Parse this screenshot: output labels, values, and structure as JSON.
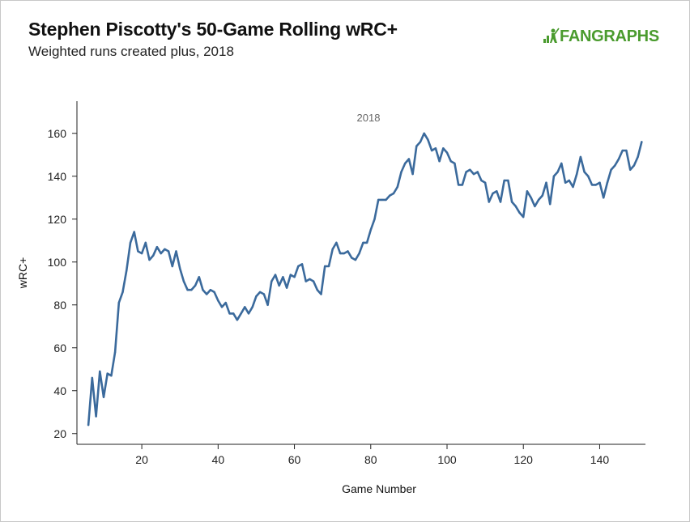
{
  "header": {
    "title": "Stephen Piscotty's 50-Game Rolling wRC+",
    "subtitle": "Weighted runs created plus, 2018",
    "logo_text": "FANGRAPHS"
  },
  "chart_data": {
    "type": "line",
    "xlabel": "Game Number",
    "ylabel": "wRC+",
    "xlim": [
      3,
      152
    ],
    "ylim": [
      15,
      175
    ],
    "xticks": [
      20,
      40,
      60,
      80,
      100,
      120,
      140
    ],
    "yticks": [
      20,
      40,
      60,
      80,
      100,
      120,
      140,
      160
    ],
    "annotation": "2018",
    "line_color": "#3b6a9c",
    "series": [
      {
        "name": "2018",
        "x": [
          6,
          7,
          8,
          9,
          10,
          11,
          12,
          13,
          14,
          15,
          16,
          17,
          18,
          19,
          20,
          21,
          22,
          23,
          24,
          25,
          26,
          27,
          28,
          29,
          30,
          31,
          32,
          33,
          34,
          35,
          36,
          37,
          38,
          39,
          40,
          41,
          42,
          43,
          44,
          45,
          46,
          47,
          48,
          49,
          50,
          51,
          52,
          53,
          54,
          55,
          56,
          57,
          58,
          59,
          60,
          61,
          62,
          63,
          64,
          65,
          66,
          67,
          68,
          69,
          70,
          71,
          72,
          73,
          74,
          75,
          76,
          77,
          78,
          79,
          80,
          81,
          82,
          83,
          84,
          85,
          86,
          87,
          88,
          89,
          90,
          91,
          92,
          93,
          94,
          95,
          96,
          97,
          98,
          99,
          100,
          101,
          102,
          103,
          104,
          105,
          106,
          107,
          108,
          109,
          110,
          111,
          112,
          113,
          114,
          115,
          116,
          117,
          118,
          119,
          120,
          121,
          122,
          123,
          124,
          125,
          126,
          127,
          128,
          129,
          130,
          131,
          132,
          133,
          134,
          135,
          136,
          137,
          138,
          139,
          140,
          141,
          142,
          143,
          144,
          145,
          146,
          147,
          148,
          149,
          150,
          151
        ],
        "values": [
          24,
          46,
          28,
          49,
          37,
          48,
          47,
          58,
          81,
          86,
          96,
          109,
          114,
          105,
          104,
          109,
          101,
          103,
          107,
          104,
          106,
          105,
          98,
          105,
          97,
          91,
          87,
          87,
          89,
          93,
          87,
          85,
          87,
          86,
          82,
          79,
          81,
          76,
          76,
          73,
          76,
          79,
          76,
          79,
          84,
          86,
          85,
          80,
          91,
          94,
          89,
          93,
          88,
          94,
          93,
          98,
          99,
          91,
          92,
          91,
          87,
          85,
          98,
          98,
          106,
          109,
          104,
          104,
          105,
          102,
          101,
          104,
          109,
          109,
          115,
          120,
          129,
          129,
          129,
          131,
          132,
          135,
          142,
          146,
          148,
          141,
          154,
          156,
          160,
          157,
          152,
          153,
          147,
          153,
          151,
          147,
          146,
          136,
          136,
          142,
          143,
          141,
          142,
          138,
          137,
          128,
          132,
          133,
          128,
          138,
          138,
          128,
          126,
          123,
          121,
          133,
          130,
          126,
          129,
          131,
          137,
          127,
          140,
          142,
          146,
          137,
          138,
          135,
          141,
          149,
          142,
          140,
          136,
          136,
          137,
          130,
          137,
          143,
          145,
          148,
          152,
          152,
          143,
          145,
          149,
          156
        ]
      }
    ]
  }
}
